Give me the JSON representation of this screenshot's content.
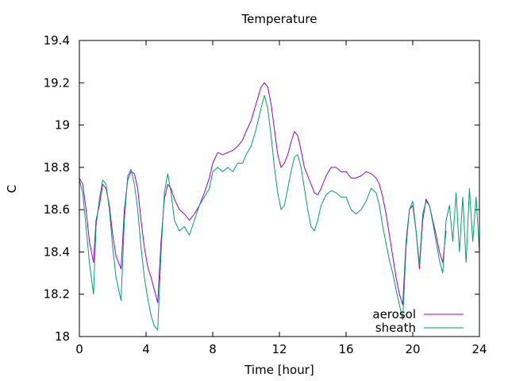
{
  "chart_data": {
    "type": "line",
    "title": "Temperature",
    "xlabel": "Time [hour]",
    "ylabel": "C",
    "xlim": [
      0,
      24
    ],
    "ylim": [
      18,
      19.4
    ],
    "xticks": [
      0,
      4,
      8,
      12,
      16,
      20,
      24
    ],
    "yticks": [
      18,
      18.2,
      18.4,
      18.6,
      18.8,
      19,
      19.2,
      19.4
    ],
    "xtick_labels": [
      "0",
      "4",
      "8",
      "12",
      "16",
      "20",
      "24"
    ],
    "ytick_labels": [
      "18",
      "18.2",
      "18.4",
      "18.6",
      "18.8",
      "19",
      "19.2",
      "19.4"
    ],
    "grid": false,
    "legend": "bottom-right",
    "series": [
      {
        "name": "aerosol",
        "color": "#9400d3",
        "x": [
          0,
          0.2,
          0.4,
          0.6,
          0.85,
          1.0,
          1.2,
          1.4,
          1.6,
          1.8,
          2.0,
          2.2,
          2.5,
          2.7,
          2.9,
          3.1,
          3.3,
          3.5,
          3.7,
          3.9,
          4.1,
          4.3,
          4.5,
          4.7,
          4.9,
          5.1,
          5.3,
          5.5,
          5.7,
          6.0,
          6.3,
          6.6,
          6.9,
          7.2,
          7.5,
          7.8,
          8.0,
          8.3,
          8.6,
          8.9,
          9.2,
          9.5,
          9.8,
          10.0,
          10.3,
          10.6,
          10.9,
          11.1,
          11.3,
          11.5,
          11.7,
          11.9,
          12.1,
          12.3,
          12.5,
          12.7,
          12.9,
          13.1,
          13.3,
          13.5,
          13.7,
          13.9,
          14.1,
          14.3,
          14.5,
          14.8,
          15.1,
          15.4,
          15.7,
          16.0,
          16.3,
          16.6,
          16.9,
          17.2,
          17.5,
          17.8,
          18.0,
          18.2,
          18.4,
          18.6,
          18.8,
          19.0,
          19.2,
          19.4,
          19.6,
          19.8,
          20.0,
          20.2,
          20.4,
          20.6,
          20.8,
          21.0,
          21.2,
          21.4,
          21.6,
          21.8,
          22.0
        ],
        "values": [
          18.75,
          18.72,
          18.6,
          18.45,
          18.35,
          18.55,
          18.62,
          18.72,
          18.7,
          18.62,
          18.48,
          18.38,
          18.32,
          18.6,
          18.74,
          18.78,
          18.77,
          18.7,
          18.55,
          18.42,
          18.33,
          18.28,
          18.22,
          18.16,
          18.45,
          18.65,
          18.72,
          18.7,
          18.65,
          18.6,
          18.58,
          18.55,
          18.58,
          18.62,
          18.68,
          18.75,
          18.82,
          18.87,
          18.86,
          18.87,
          18.88,
          18.9,
          18.93,
          18.97,
          19.02,
          19.1,
          19.18,
          19.2,
          19.18,
          19.1,
          18.98,
          18.86,
          18.8,
          18.82,
          18.86,
          18.92,
          18.97,
          18.95,
          18.88,
          18.8,
          18.76,
          18.72,
          18.68,
          18.67,
          18.7,
          18.76,
          18.8,
          18.8,
          18.78,
          18.78,
          18.75,
          18.75,
          18.76,
          18.78,
          18.77,
          18.75,
          18.72,
          18.66,
          18.58,
          18.48,
          18.38,
          18.28,
          18.2,
          18.15,
          18.45,
          18.6,
          18.62,
          18.5,
          18.32,
          18.55,
          18.65,
          18.62,
          18.55,
          18.48,
          18.4,
          18.35,
          18.5
        ]
      },
      {
        "name": "sheath",
        "color": "#009e73",
        "x": [
          0,
          0.2,
          0.4,
          0.6,
          0.85,
          1.0,
          1.2,
          1.4,
          1.6,
          1.8,
          2.0,
          2.2,
          2.5,
          2.7,
          2.9,
          3.1,
          3.3,
          3.5,
          3.7,
          3.9,
          4.1,
          4.3,
          4.5,
          4.7,
          4.9,
          5.1,
          5.3,
          5.5,
          5.7,
          6.0,
          6.3,
          6.6,
          6.9,
          7.2,
          7.5,
          7.8,
          8.0,
          8.3,
          8.6,
          8.9,
          9.2,
          9.5,
          9.8,
          10.0,
          10.3,
          10.6,
          10.9,
          11.1,
          11.3,
          11.5,
          11.7,
          11.9,
          12.1,
          12.3,
          12.5,
          12.7,
          12.9,
          13.1,
          13.3,
          13.5,
          13.7,
          13.9,
          14.1,
          14.3,
          14.5,
          14.8,
          15.1,
          15.4,
          15.7,
          16.0,
          16.3,
          16.6,
          16.9,
          17.2,
          17.5,
          17.8,
          18.0,
          18.2,
          18.4,
          18.6,
          18.8,
          19.0,
          19.2,
          19.4,
          19.6,
          19.8,
          20.0,
          20.2,
          20.4,
          20.6,
          20.8,
          21.0,
          21.2,
          21.4,
          21.6,
          21.8,
          22.0,
          22.2,
          22.4,
          22.6,
          22.8,
          23.0,
          23.2,
          23.4,
          23.6,
          23.8,
          24.0
        ],
        "values": [
          18.74,
          18.68,
          18.52,
          18.35,
          18.2,
          18.52,
          18.65,
          18.74,
          18.72,
          18.6,
          18.42,
          18.28,
          18.17,
          18.55,
          18.76,
          18.79,
          18.72,
          18.6,
          18.42,
          18.28,
          18.18,
          18.1,
          18.05,
          18.03,
          18.4,
          18.68,
          18.77,
          18.68,
          18.55,
          18.5,
          18.52,
          18.48,
          18.55,
          18.62,
          18.66,
          18.7,
          18.78,
          18.8,
          18.78,
          18.8,
          18.78,
          18.82,
          18.82,
          18.86,
          18.9,
          18.98,
          19.08,
          19.14,
          19.08,
          18.95,
          18.8,
          18.68,
          18.6,
          18.62,
          18.7,
          18.78,
          18.85,
          18.86,
          18.8,
          18.7,
          18.6,
          18.52,
          18.5,
          18.55,
          18.62,
          18.67,
          18.69,
          18.68,
          18.66,
          18.66,
          18.6,
          18.58,
          18.6,
          18.64,
          18.7,
          18.68,
          18.62,
          18.52,
          18.44,
          18.36,
          18.3,
          18.22,
          18.15,
          18.08,
          18.42,
          18.6,
          18.64,
          18.5,
          18.34,
          18.58,
          18.64,
          18.62,
          18.54,
          18.45,
          18.36,
          18.3,
          18.55,
          18.62,
          18.45,
          18.68,
          18.4,
          18.66,
          18.35,
          18.7,
          18.45,
          18.66,
          18.4
        ]
      }
    ]
  }
}
